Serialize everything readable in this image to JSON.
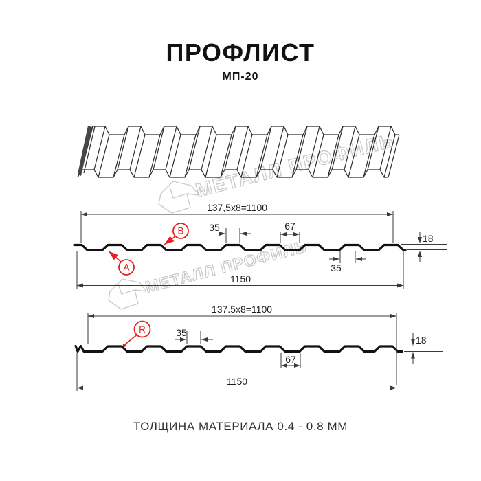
{
  "header": {
    "title": "ПРОФЛИСТ",
    "subtitle": "МП-20"
  },
  "watermark": {
    "text": "МЕТАЛЛ ПРОФИЛЬ"
  },
  "profile_top": {
    "module_width": "137,5x8=1100",
    "crest_top_width": "35",
    "valley_width": "67",
    "sheet_height": "18",
    "crest_bottom_width": "35",
    "full_width": "1150",
    "point_a": "A",
    "point_b": "B"
  },
  "profile_bottom": {
    "module_width": "137.5x8=1100",
    "crest_top_width": "35",
    "valley_bottom_width": "67",
    "sheet_height": "18",
    "full_width": "1150",
    "point_r": "R"
  },
  "footer": {
    "caption": "ТОЛЩИНА МАТЕРИАЛА 0.4 - 0.8 ММ"
  },
  "colors": {
    "accent": "#e8201d",
    "line": "#1a1a1a",
    "watermark": "#c9c9c9"
  }
}
